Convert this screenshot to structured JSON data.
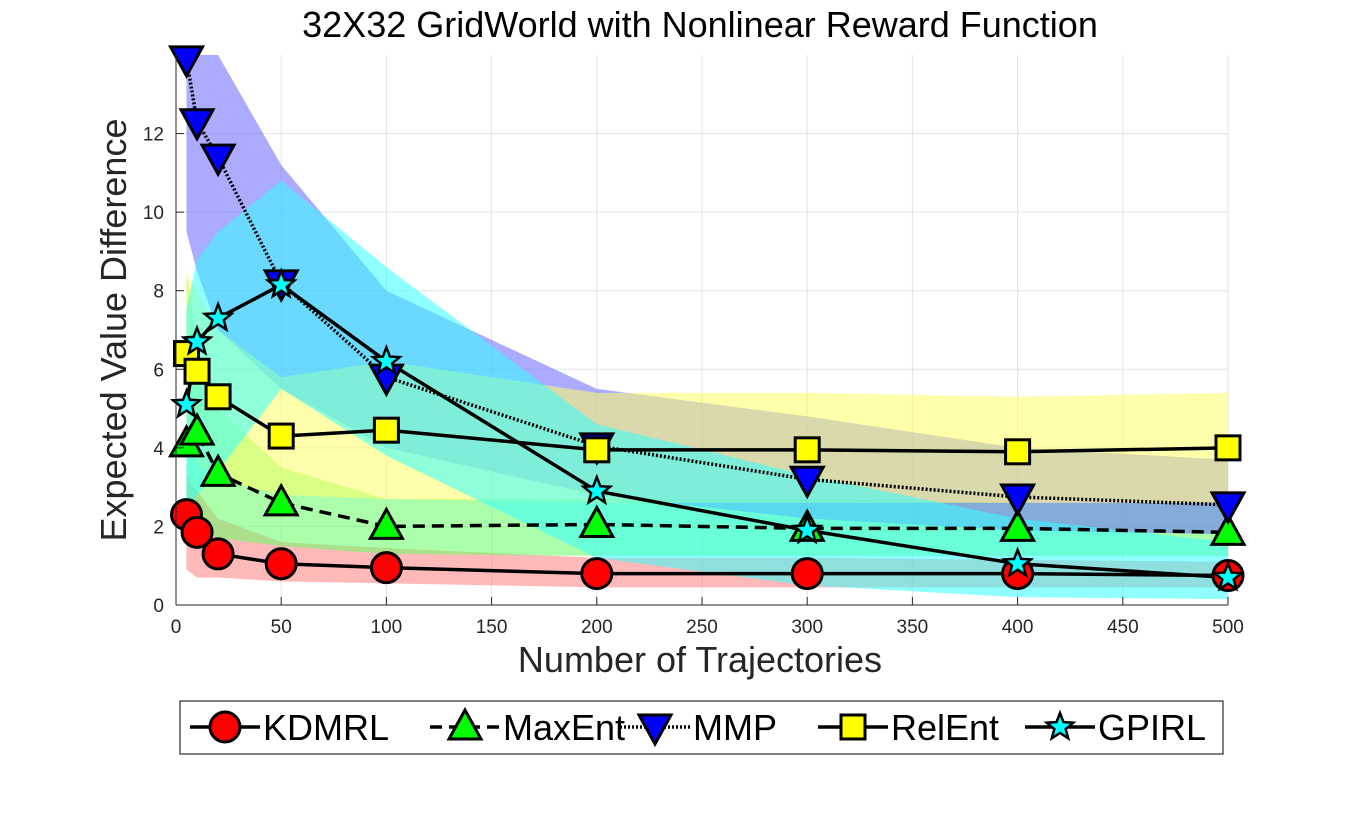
{
  "chart_data": {
    "type": "line",
    "title": "32X32 GridWorld with Nonlinear Reward Function",
    "xlabel": "Number of Trajectories",
    "ylabel": "Expected Value Difference",
    "xlim": [
      0,
      500
    ],
    "ylim": [
      0,
      14
    ],
    "xticks": [
      0,
      50,
      100,
      150,
      200,
      250,
      300,
      350,
      400,
      450,
      500
    ],
    "yticks": [
      0,
      2,
      4,
      6,
      8,
      10,
      12
    ],
    "grid": true,
    "legend_position": "bottom-outside",
    "series": [
      {
        "name": "KDMRL",
        "color": "#ff0000",
        "marker": "circle",
        "line_style": "solid",
        "x": [
          5,
          10,
          20,
          50,
          100,
          200,
          300,
          400,
          500
        ],
        "y": [
          2.3,
          1.85,
          1.3,
          1.05,
          0.95,
          0.8,
          0.8,
          0.8,
          0.75
        ],
        "band_color": "#ff8080",
        "band_lower": [
          0.9,
          0.7,
          0.7,
          0.6,
          0.55,
          0.45,
          0.45,
          0.45,
          0.45
        ],
        "band_upper": [
          3.3,
          2.9,
          2.2,
          1.6,
          1.45,
          1.2,
          1.2,
          1.15,
          1.1
        ]
      },
      {
        "name": "MaxEnt",
        "color": "#00ff00",
        "marker": "triangle-up",
        "line_style": "dashed",
        "x": [
          5,
          10,
          20,
          50,
          100,
          200,
          300,
          400,
          500
        ],
        "y": [
          4.1,
          4.4,
          3.35,
          2.6,
          2.0,
          2.05,
          1.95,
          1.95,
          1.85
        ],
        "band_color": "#66ff66",
        "band_lower": [
          2.6,
          2.0,
          1.7,
          1.5,
          1.3,
          1.25,
          1.25,
          1.25,
          1.25
        ],
        "band_upper": [
          8.5,
          6.5,
          5.0,
          3.5,
          2.7,
          2.7,
          2.7,
          2.6,
          2.6
        ]
      },
      {
        "name": "MMP",
        "color": "#0000ff",
        "marker": "triangle-down",
        "line_style": "dotted",
        "x": [
          5,
          10,
          20,
          50,
          100,
          200,
          300,
          400,
          500
        ],
        "y": [
          13.9,
          12.3,
          11.4,
          8.2,
          5.8,
          4.05,
          3.2,
          2.75,
          2.55
        ],
        "band_color": "#6666ff",
        "band_lower": [
          9.5,
          8.5,
          7.0,
          5.5,
          4.0,
          2.8,
          2.2,
          1.9,
          1.8
        ],
        "band_upper": [
          14.0,
          14.0,
          14.0,
          11.2,
          8.0,
          5.5,
          4.8,
          4.0,
          3.7
        ]
      },
      {
        "name": "RelEnt",
        "color": "#ffff00",
        "marker": "square",
        "line_style": "solid",
        "x": [
          5,
          10,
          20,
          50,
          100,
          200,
          300,
          400,
          500
        ],
        "y": [
          6.4,
          5.95,
          5.3,
          4.3,
          4.45,
          3.95,
          3.95,
          3.9,
          4.0
        ],
        "band_color": "#ffff66",
        "band_lower": [
          4.0,
          3.6,
          3.2,
          2.8,
          2.7,
          2.6,
          2.6,
          2.6,
          2.6
        ],
        "band_upper": [
          8.4,
          8.0,
          7.0,
          5.8,
          6.2,
          5.4,
          5.4,
          5.3,
          5.4
        ]
      },
      {
        "name": "GPIRL",
        "color": "#00ffff",
        "marker": "star",
        "line_style": "solid",
        "x": [
          5,
          10,
          20,
          50,
          100,
          200,
          300,
          400,
          500
        ],
        "y": [
          5.1,
          6.7,
          7.3,
          8.15,
          6.2,
          2.9,
          1.9,
          1.05,
          0.7
        ],
        "band_color": "#33ffff",
        "band_lower": [
          2.2,
          2.8,
          3.4,
          5.5,
          3.8,
          1.2,
          0.5,
          0.2,
          0.15
        ],
        "band_upper": [
          7.5,
          8.8,
          9.5,
          10.8,
          8.6,
          4.6,
          3.3,
          2.2,
          1.6
        ]
      }
    ]
  }
}
